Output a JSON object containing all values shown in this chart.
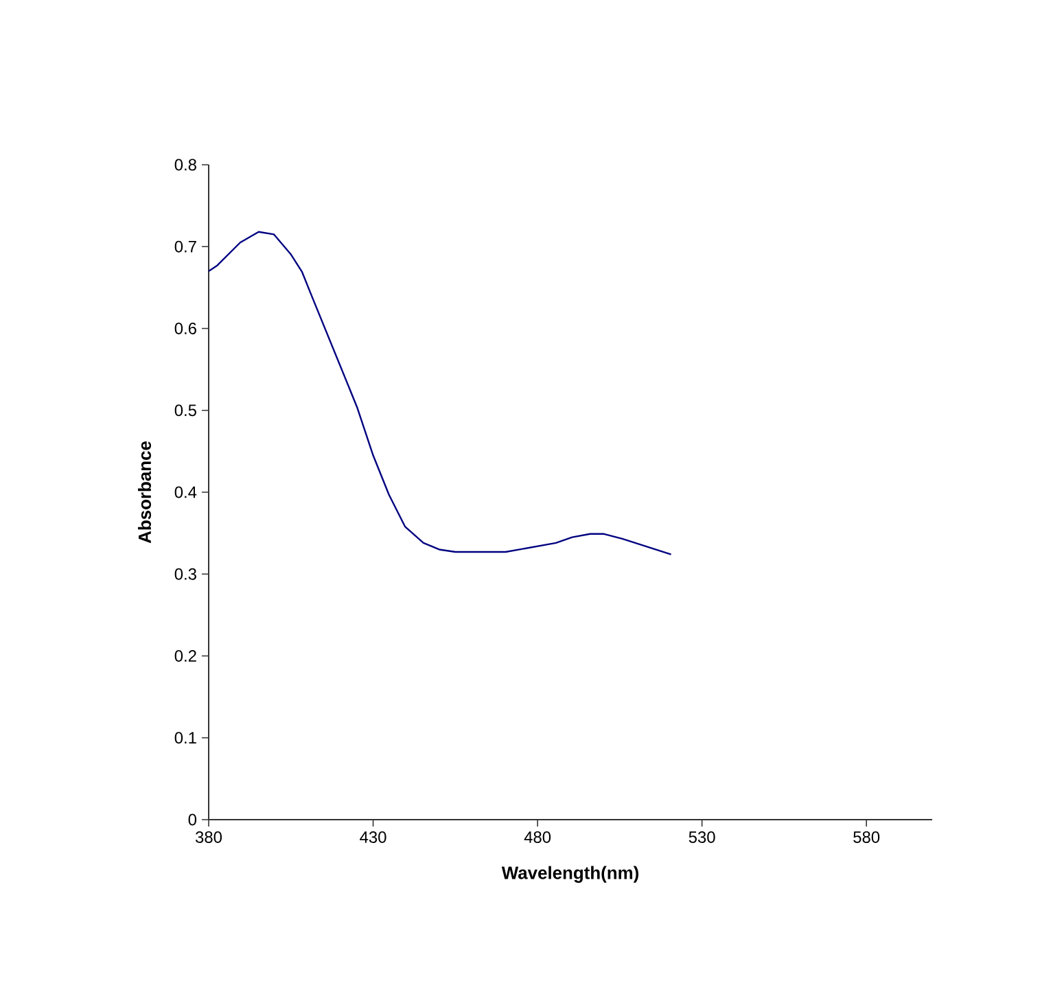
{
  "chart_data": {
    "type": "line",
    "xlabel": "Wavelength(nm)",
    "ylabel": "Absorbance",
    "xlim": [
      380,
      600
    ],
    "ylim": [
      0,
      0.8
    ],
    "xticks": [
      380,
      430,
      480,
      530,
      580
    ],
    "yticks": [
      0,
      0.1,
      0.2,
      0.3,
      0.4,
      0.5,
      0.6,
      0.7,
      0.8
    ],
    "grid": false,
    "legend": false,
    "marker": "none",
    "line_style": "solid",
    "series": [
      {
        "color": "#000080",
        "x": [
          380,
          382.6,
          389.6,
          395.2,
          399.8,
          404.9,
          408.4,
          411.2,
          425.1,
          430,
          434.8,
          439.7,
          445.3,
          450.1,
          455,
          470.3,
          485.6,
          490.5,
          496,
          500.2,
          505.8,
          520.6
        ],
        "values": [
          0.67,
          0.677,
          0.705,
          0.718,
          0.715,
          0.691,
          0.669,
          0.641,
          0.504,
          0.445,
          0.397,
          0.358,
          0.338,
          0.33,
          0.327,
          0.327,
          0.338,
          0.345,
          0.349,
          0.349,
          0.343,
          0.324
        ]
      }
    ]
  }
}
